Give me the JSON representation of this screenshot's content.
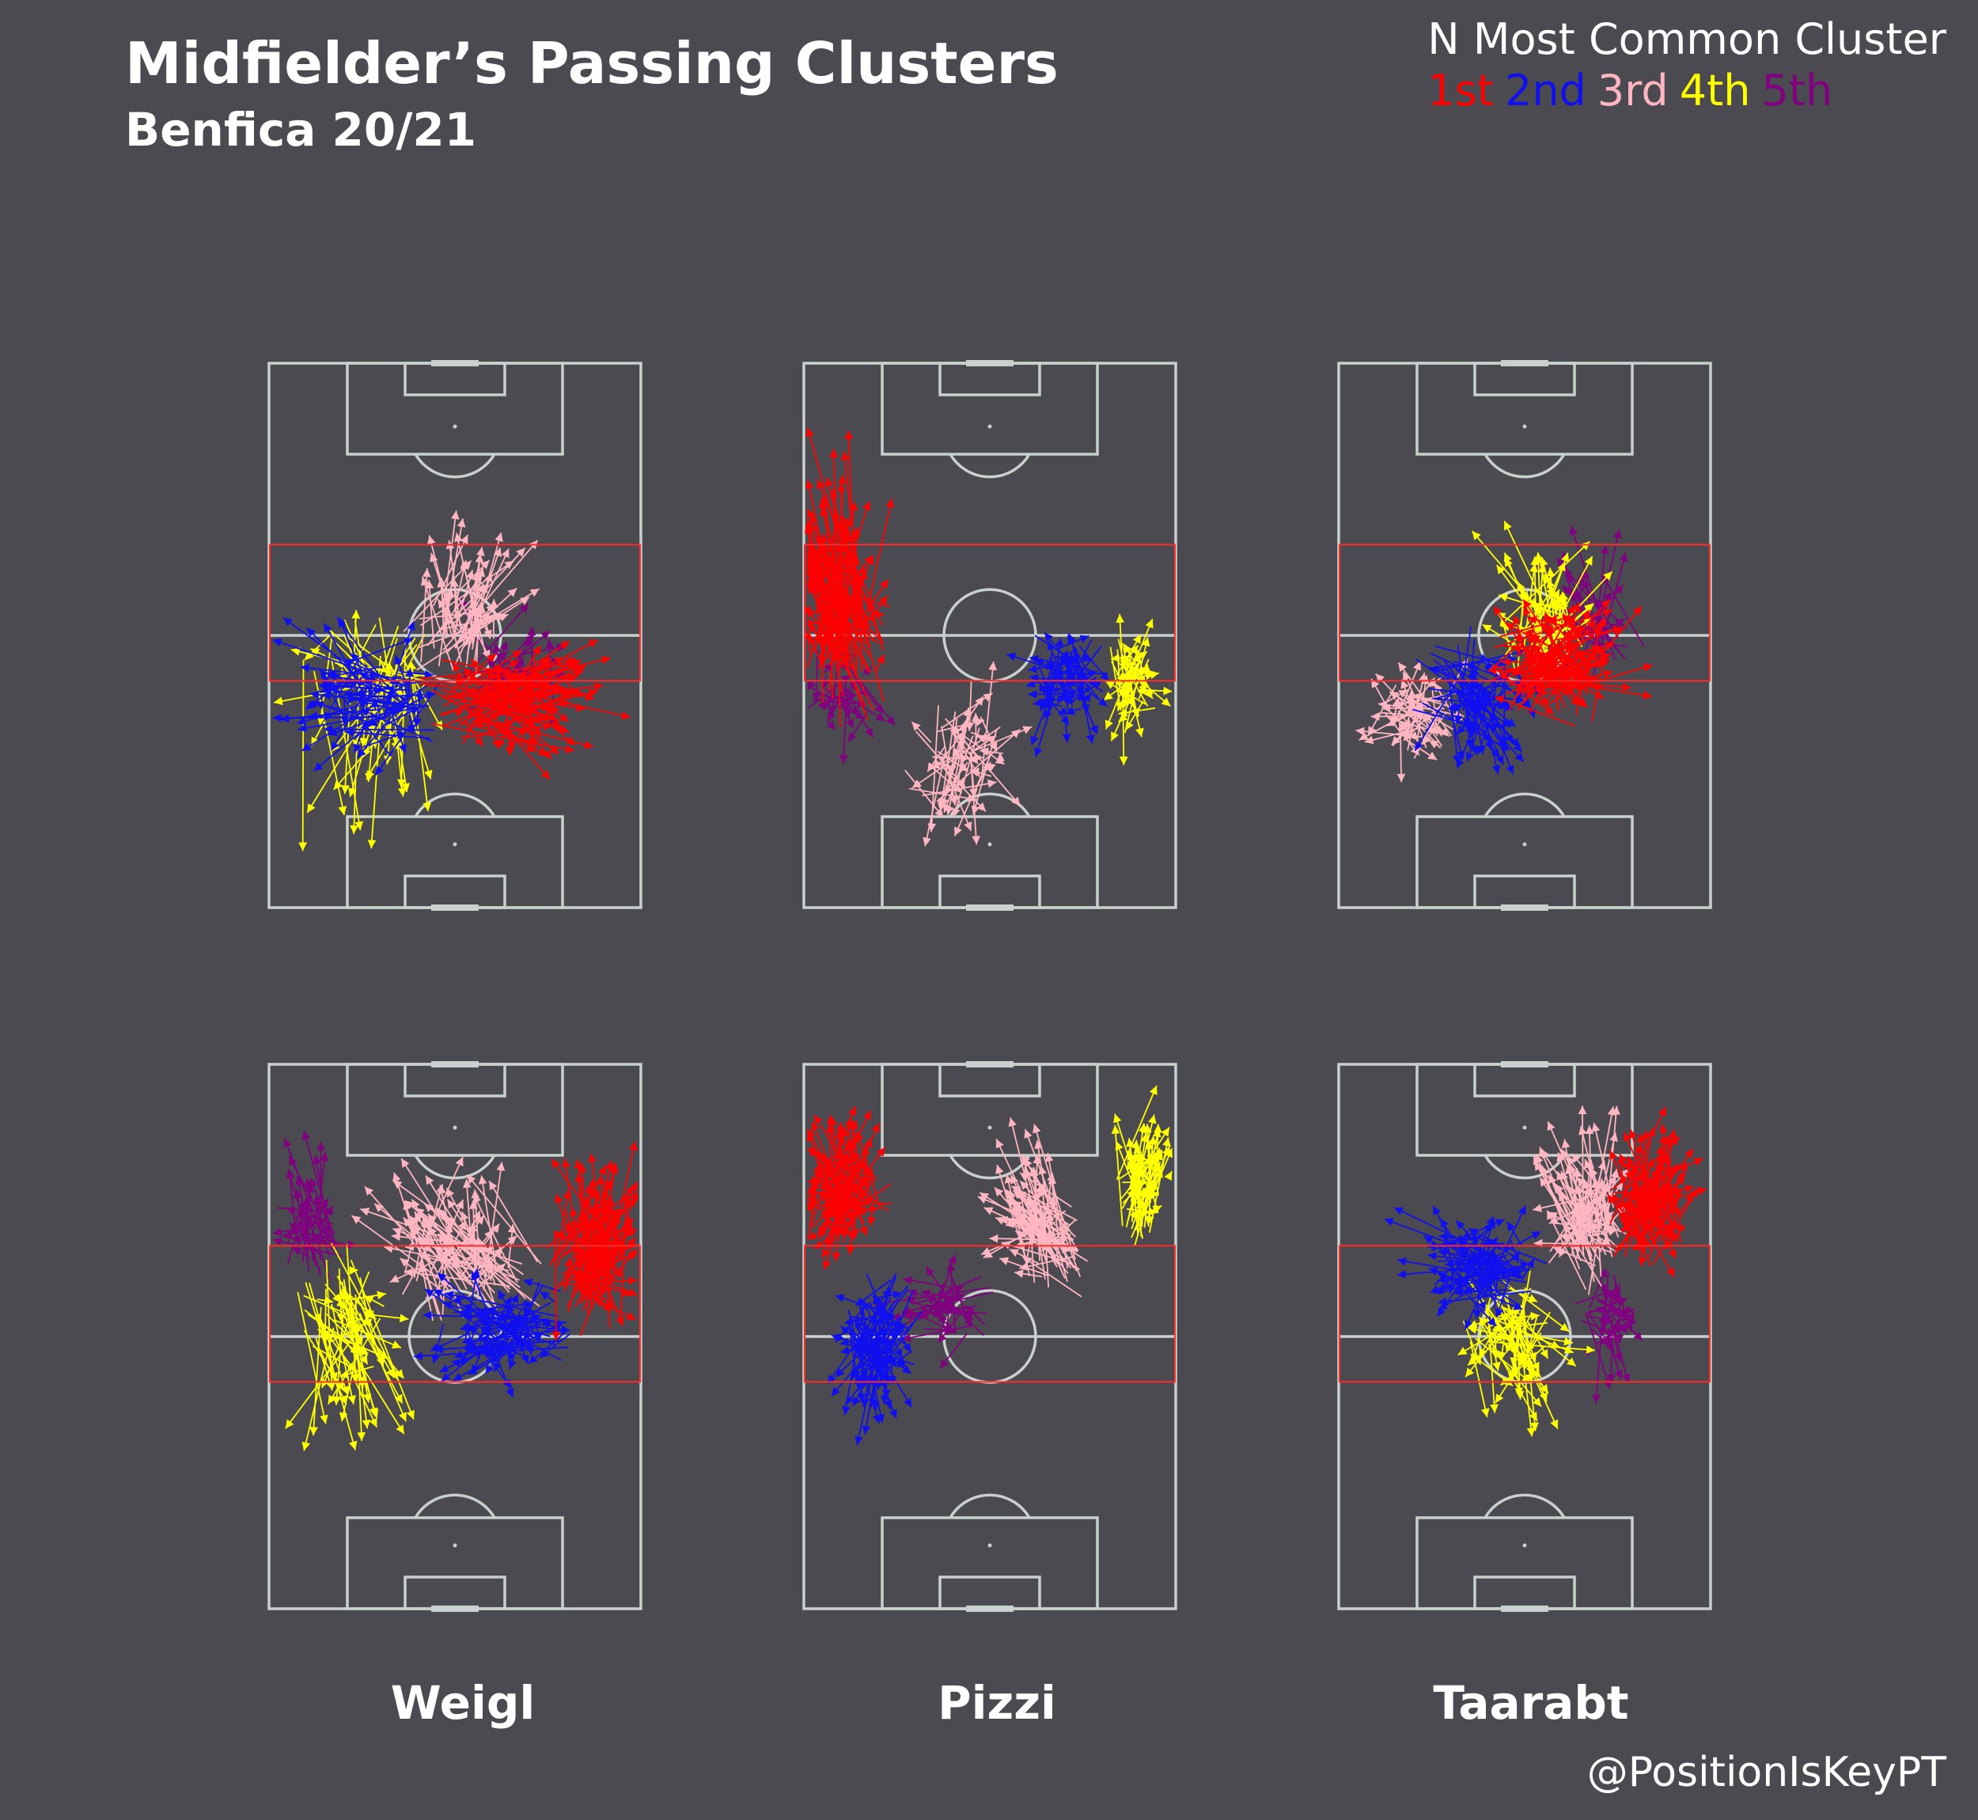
{
  "title": "Midfielder’s Passing Clusters",
  "subtitle": "Benfica 20/21",
  "legend": {
    "title": "N Most Common Cluster",
    "items": [
      {
        "label": "1st",
        "color": "#ff0000"
      },
      {
        "label": "2nd",
        "color": "#1010ee"
      },
      {
        "label": "3rd",
        "color": "#ffb6c1"
      },
      {
        "label": "4th",
        "color": "#ffff00"
      },
      {
        "label": "5th",
        "color": "#800080"
      }
    ]
  },
  "credit": "@PositionIsKeyPT",
  "chart_data": {
    "type": "scatter",
    "players": [
      "Weigl",
      "Pizzi",
      "Taarabt"
    ],
    "rows": [
      {
        "highlight_zone": "middle third"
      },
      {
        "highlight_zone": "middle third"
      }
    ]
  }
}
